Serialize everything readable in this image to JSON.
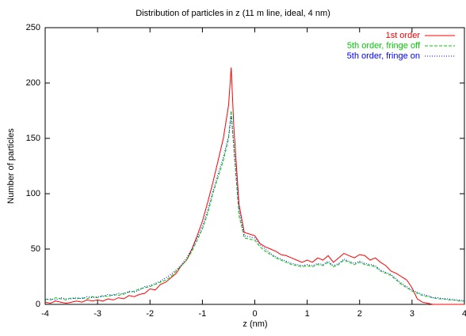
{
  "chart_data": {
    "type": "line",
    "title": "Distribution of particles in z (11 m line, ideal, 4 nm)",
    "x_label": "z (nm)",
    "y_label": "Number of particles",
    "x": [
      -4,
      -3.9,
      -3.8,
      -3.7,
      -3.6,
      -3.5,
      -3.4,
      -3.3,
      -3.2,
      -3.1,
      -3,
      -2.9,
      -2.8,
      -2.7,
      -2.6,
      -2.5,
      -2.4,
      -2.3,
      -2.2,
      -2.1,
      -2,
      -1.9,
      -1.8,
      -1.7,
      -1.6,
      -1.5,
      -1.4,
      -1.3,
      -1.2,
      -1.1,
      -1,
      -0.9,
      -0.8,
      -0.7,
      -0.6,
      -0.5,
      -0.45,
      -0.4,
      -0.3,
      -0.2,
      0,
      0.1,
      0.2,
      0.3,
      0.4,
      0.5,
      0.6,
      0.7,
      0.8,
      0.9,
      1,
      1.1,
      1.2,
      1.3,
      1.4,
      1.5,
      1.6,
      1.7,
      1.8,
      1.9,
      2,
      2.1,
      2.2,
      2.3,
      2.4,
      2.5,
      2.6,
      2.7,
      2.8,
      2.9,
      3,
      3.1,
      3.2,
      3.3,
      3.4,
      3.5,
      3.6,
      3.7,
      3.8,
      3.9,
      4
    ],
    "series": [
      {
        "name": "1st order",
        "color": "#ff0000",
        "dash": "none",
        "values": [
          2,
          1,
          3,
          2,
          1,
          2,
          3,
          2,
          4,
          3,
          4,
          3,
          5,
          4,
          6,
          5,
          8,
          7,
          9,
          10,
          14,
          13,
          18,
          20,
          24,
          28,
          35,
          40,
          50,
          62,
          75,
          92,
          110,
          130,
          150,
          180,
          214,
          160,
          90,
          65,
          62,
          55,
          52,
          50,
          48,
          45,
          44,
          42,
          40,
          38,
          40,
          38,
          42,
          40,
          44,
          38,
          42,
          46,
          44,
          42,
          45,
          44,
          40,
          42,
          38,
          35,
          30,
          28,
          25,
          22,
          15,
          5,
          2,
          1,
          0,
          0,
          0,
          0,
          0,
          0,
          0
        ]
      },
      {
        "name": "5th order, fringe off",
        "color": "#00cc00",
        "dash": "4 2",
        "values": [
          5,
          4,
          6,
          5,
          4,
          6,
          5,
          6,
          5,
          7,
          6,
          8,
          7,
          9,
          8,
          10,
          11,
          12,
          14,
          15,
          16,
          18,
          20,
          22,
          25,
          30,
          35,
          40,
          48,
          58,
          68,
          82,
          100,
          115,
          130,
          150,
          175,
          140,
          80,
          60,
          58,
          52,
          48,
          45,
          42,
          40,
          38,
          36,
          35,
          34,
          35,
          34,
          36,
          35,
          38,
          34,
          36,
          40,
          38,
          36,
          38,
          36,
          35,
          34,
          30,
          28,
          26,
          22,
          18,
          15,
          12,
          10,
          8,
          7,
          6,
          5,
          5,
          4,
          4,
          3,
          3
        ]
      },
      {
        "name": "5th order, fringe on",
        "color": "#0000ff",
        "dash": "1 2",
        "values": [
          4,
          5,
          4,
          6,
          5,
          5,
          6,
          5,
          7,
          6,
          7,
          7,
          9,
          8,
          10,
          9,
          12,
          11,
          13,
          16,
          17,
          19,
          21,
          24,
          27,
          31,
          36,
          42,
          50,
          60,
          70,
          85,
          102,
          118,
          133,
          152,
          170,
          145,
          85,
          62,
          60,
          54,
          50,
          46,
          43,
          41,
          39,
          37,
          36,
          35,
          36,
          35,
          37,
          36,
          39,
          35,
          37,
          41,
          39,
          37,
          39,
          37,
          36,
          35,
          31,
          29,
          27,
          23,
          19,
          16,
          13,
          11,
          9,
          8,
          6,
          6,
          5,
          5,
          4,
          4,
          3
        ]
      }
    ],
    "xlim": [
      -4,
      4
    ],
    "xticks": [
      -4,
      -3,
      -2,
      -1,
      0,
      1,
      2,
      3,
      4
    ],
    "ylim": [
      0,
      250
    ],
    "yticks": [
      0,
      50,
      100,
      150,
      200,
      250
    ],
    "legend": "top-right"
  }
}
